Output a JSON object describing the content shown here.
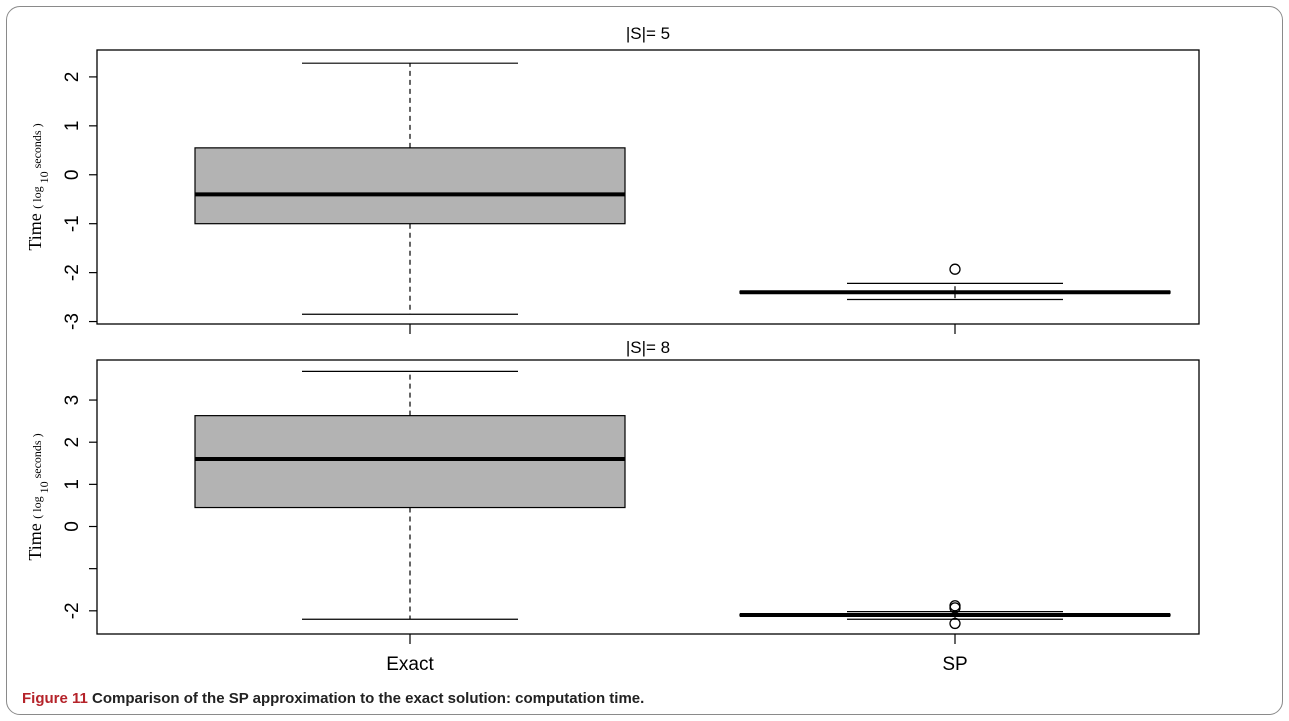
{
  "chart_data": [
    {
      "type": "box",
      "title": "|S|= 5",
      "ylabel": {
        "main": "Time",
        "paren_open": "( ",
        "log": "log",
        "sub": "10",
        "unit": " seconds )"
      },
      "categories": [
        "Exact",
        "SP"
      ],
      "ylim": [
        -3.05,
        2.55
      ],
      "yticks": [
        -3,
        -2,
        -1,
        0,
        1,
        2
      ],
      "ytick_labels": [
        "-3",
        "-2",
        "-1",
        "0",
        "1",
        "2"
      ],
      "boxes": [
        {
          "name": "Exact",
          "min": -2.85,
          "q1": -1.0,
          "median": -0.4,
          "q3": 0.55,
          "max": 2.28,
          "outliers": []
        },
        {
          "name": "SP",
          "min": -2.55,
          "q1": -2.42,
          "median": -2.4,
          "q3": -2.38,
          "max": -2.22,
          "outliers": [
            -1.93
          ]
        }
      ],
      "box_fill": "#b3b3b3"
    },
    {
      "type": "box",
      "title": "|S|= 8",
      "ylabel": {
        "main": "Time",
        "paren_open": "( ",
        "log": "log",
        "sub": "10",
        "unit": " seconds )"
      },
      "categories": [
        "Exact",
        "SP"
      ],
      "ylim": [
        -2.55,
        3.95
      ],
      "yticks": [
        -2,
        -1,
        0,
        1,
        2,
        3
      ],
      "ytick_labels": [
        "-2",
        "",
        "0",
        "1",
        "2",
        "3"
      ],
      "boxes": [
        {
          "name": "Exact",
          "min": -2.2,
          "q1": 0.45,
          "median": 1.6,
          "q3": 2.63,
          "max": 3.68,
          "outliers": []
        },
        {
          "name": "SP",
          "min": -2.2,
          "q1": -2.12,
          "median": -2.1,
          "q3": -2.08,
          "max": -2.02,
          "outliers": [
            -1.88,
            -1.93,
            -2.3
          ]
        }
      ],
      "box_fill": "#b3b3b3"
    }
  ],
  "caption": {
    "lead": "Figure 11",
    "text": "Comparison of the SP approximation to the exact solution: computation time."
  }
}
